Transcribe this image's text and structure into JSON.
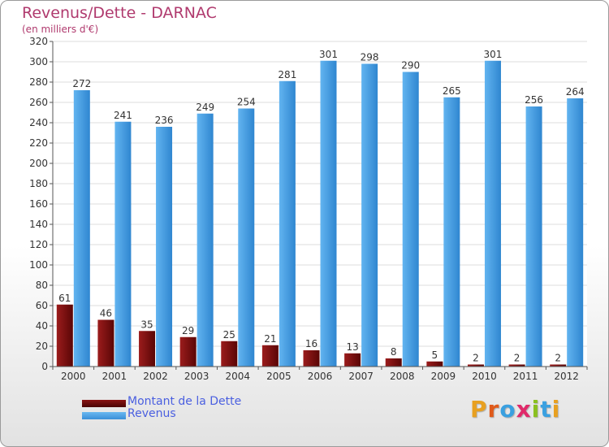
{
  "title": "Revenus/Dette - DARNAC",
  "subtitle": "(en milliers d'€)",
  "brand": {
    "letters": [
      "P",
      "r",
      "o",
      "x",
      "i",
      "t",
      "i"
    ],
    "colors": [
      "#e8a020",
      "#e05a1a",
      "#3aa0e0",
      "#e02a6a",
      "#8ac020",
      "#3aa0e0",
      "#e8a020"
    ]
  },
  "legend": [
    {
      "label": "Montant de la Dette",
      "color": "#6b0a0a"
    },
    {
      "label": "Revenus",
      "color": "#4aa3e8"
    }
  ],
  "chart_data": {
    "type": "bar",
    "categories": [
      "2000",
      "2001",
      "2002",
      "2003",
      "2004",
      "2005",
      "2006",
      "2007",
      "2008",
      "2009",
      "2010",
      "2011",
      "2012"
    ],
    "series": [
      {
        "name": "Montant de la Dette",
        "color": "#6b0a0a",
        "values": [
          61,
          46,
          35,
          29,
          25,
          21,
          16,
          13,
          8,
          5,
          2,
          2,
          2
        ]
      },
      {
        "name": "Revenus",
        "color": "#4aa3e8",
        "values": [
          272,
          241,
          236,
          249,
          254,
          281,
          301,
          298,
          290,
          265,
          301,
          256,
          264
        ]
      }
    ],
    "yticks": [
      "0",
      "20",
      "40",
      "60",
      "80",
      "100",
      "120",
      "140",
      "160",
      "180",
      "200",
      "220",
      "240",
      "260",
      "280",
      "300",
      "320"
    ],
    "ylim": [
      0,
      320
    ],
    "grid": true,
    "legend_position": "bottom-left"
  }
}
